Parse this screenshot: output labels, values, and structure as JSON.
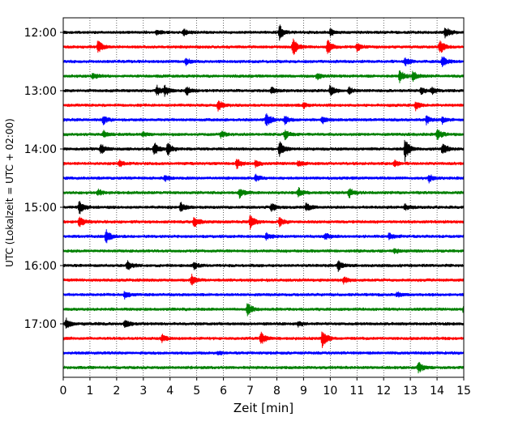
{
  "chart_data": {
    "type": "line",
    "subtype": "helicorder",
    "xlabel": "Zeit  [min]",
    "ylabel": "UTC (Lokalzeit = UTC + 02:00)",
    "xlim": [
      0,
      15
    ],
    "x_ticks": [
      0,
      1,
      2,
      3,
      4,
      5,
      6,
      7,
      8,
      9,
      10,
      11,
      12,
      13,
      14,
      15
    ],
    "vertical_grid": "dotted",
    "trace_interval_min": 15,
    "trace_color_cycle": [
      "#000000",
      "#ff0000",
      "#0000ff",
      "#008000"
    ],
    "y_ticks": [
      {
        "trace_index": 0,
        "label": "12:00"
      },
      {
        "trace_index": 4,
        "label": "13:00"
      },
      {
        "trace_index": 8,
        "label": "14:00"
      },
      {
        "trace_index": 12,
        "label": "15:00"
      },
      {
        "trace_index": 16,
        "label": "16:00"
      },
      {
        "trace_index": 20,
        "label": "17:00"
      }
    ],
    "traces": [
      {
        "start": "12:00",
        "events": [
          [
            3.5,
            3
          ],
          [
            4.5,
            4
          ],
          [
            8.1,
            9
          ],
          [
            10,
            4
          ],
          [
            14.3,
            8
          ]
        ]
      },
      {
        "start": "12:15",
        "events": [
          [
            1.3,
            9
          ],
          [
            8.6,
            12
          ],
          [
            9.9,
            9
          ],
          [
            11,
            5
          ],
          [
            14.1,
            10
          ]
        ]
      },
      {
        "start": "12:30",
        "events": [
          [
            4.6,
            4
          ],
          [
            12.8,
            5
          ],
          [
            14.2,
            7
          ]
        ]
      },
      {
        "start": "12:45",
        "events": [
          [
            1.1,
            4
          ],
          [
            9.5,
            4
          ],
          [
            12.6,
            8
          ],
          [
            13.1,
            6
          ]
        ]
      },
      {
        "start": "13:00",
        "events": [
          [
            3.5,
            6
          ],
          [
            3.8,
            6
          ],
          [
            4.6,
            6
          ],
          [
            7.8,
            4
          ],
          [
            10,
            7
          ],
          [
            10.7,
            4
          ],
          [
            13.4,
            4
          ],
          [
            13.8,
            4
          ]
        ]
      },
      {
        "start": "13:15",
        "events": [
          [
            5.8,
            7
          ],
          [
            9,
            3
          ],
          [
            13.2,
            6
          ]
        ]
      },
      {
        "start": "13:30",
        "events": [
          [
            1.5,
            5
          ],
          [
            7.6,
            10
          ],
          [
            8.3,
            5
          ],
          [
            9.7,
            4
          ],
          [
            13.6,
            5
          ],
          [
            14.2,
            4
          ]
        ]
      },
      {
        "start": "13:45",
        "events": [
          [
            1.5,
            4
          ],
          [
            3,
            3
          ],
          [
            5.9,
            4
          ],
          [
            8.3,
            6
          ],
          [
            14,
            7
          ]
        ]
      },
      {
        "start": "14:00",
        "events": [
          [
            1.4,
            7
          ],
          [
            3.4,
            8
          ],
          [
            3.9,
            9
          ],
          [
            8.1,
            9
          ],
          [
            12.8,
            14
          ],
          [
            14.2,
            8
          ]
        ]
      },
      {
        "start": "14:15",
        "events": [
          [
            2.1,
            4
          ],
          [
            6.5,
            6
          ],
          [
            7.2,
            5
          ],
          [
            8.8,
            4
          ],
          [
            12.4,
            4
          ]
        ]
      },
      {
        "start": "14:30",
        "events": [
          [
            3.8,
            4
          ],
          [
            7.2,
            4
          ],
          [
            13.7,
            5
          ]
        ]
      },
      {
        "start": "14:45",
        "events": [
          [
            1.3,
            4
          ],
          [
            6.6,
            6
          ],
          [
            8.8,
            6
          ],
          [
            10.7,
            6
          ]
        ]
      },
      {
        "start": "15:00",
        "events": [
          [
            0.6,
            9
          ],
          [
            4.4,
            6
          ],
          [
            7.8,
            5
          ],
          [
            9.1,
            5
          ],
          [
            12.8,
            4
          ]
        ]
      },
      {
        "start": "15:15",
        "events": [
          [
            0.6,
            7
          ],
          [
            4.9,
            7
          ],
          [
            7,
            9
          ],
          [
            8.1,
            6
          ]
        ]
      },
      {
        "start": "15:30",
        "events": [
          [
            1.6,
            9
          ],
          [
            7.6,
            4
          ],
          [
            9.8,
            4
          ],
          [
            12.2,
            4
          ]
        ]
      },
      {
        "start": "15:45",
        "events": [
          [
            12.4,
            3
          ]
        ]
      },
      {
        "start": "16:00",
        "events": [
          [
            2.4,
            6
          ],
          [
            4.9,
            4
          ],
          [
            10.3,
            6
          ]
        ]
      },
      {
        "start": "16:15",
        "events": [
          [
            4.8,
            7
          ],
          [
            10.5,
            4
          ]
        ]
      },
      {
        "start": "16:30",
        "events": [
          [
            2.3,
            4
          ],
          [
            12.5,
            3
          ]
        ]
      },
      {
        "start": "16:45",
        "events": [
          [
            6.9,
            8
          ],
          [
            15,
            6
          ]
        ]
      },
      {
        "start": "17:00",
        "events": [
          [
            0.1,
            7
          ],
          [
            2.3,
            5
          ],
          [
            8.8,
            3
          ]
        ]
      },
      {
        "start": "17:15",
        "events": [
          [
            3.7,
            5
          ],
          [
            7.4,
            8
          ],
          [
            9.7,
            12
          ]
        ]
      },
      {
        "start": "17:30",
        "events": [
          [
            5.8,
            2
          ]
        ]
      },
      {
        "start": "17:45",
        "events": [
          [
            13.3,
            7
          ]
        ]
      }
    ]
  }
}
